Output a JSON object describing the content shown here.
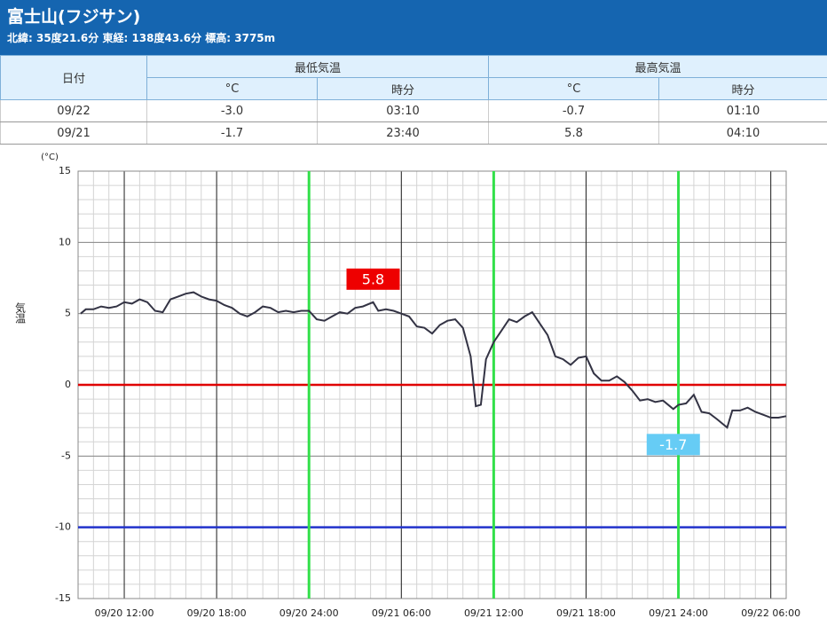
{
  "header": {
    "title": "富士山(フジサン)",
    "subtitle": "北緯: 35度21.6分 東経: 138度43.6分 標高: 3775m"
  },
  "table": {
    "headers": [
      "日付",
      "最低気温",
      "最高気温"
    ],
    "subheaders": [
      "°C",
      "時分",
      "°C",
      "時分"
    ],
    "rows": [
      [
        "09/22",
        "-3.0",
        "03:10",
        "-0.7",
        "01:10"
      ],
      [
        "09/21",
        "-1.7",
        "23:40",
        "5.8",
        "04:10"
      ]
    ]
  },
  "chart_data": {
    "type": "line",
    "y_unit": "(°C)",
    "y_label": "気温",
    "color": "#333344",
    "xlim": [
      "09/20 09:00",
      "09/22 07:00"
    ],
    "xticks": [
      "09/20 12:00",
      "09/20 18:00",
      "09/20 24:00",
      "09/21 06:00",
      "09/21 12:00",
      "09/21 18:00",
      "09/21 24:00",
      "09/22 06:00"
    ],
    "ylim": [
      -15,
      15
    ],
    "yticks": [
      -15,
      -10,
      -5,
      0,
      5,
      10,
      15
    ],
    "grid": true,
    "hlines": [
      {
        "value": 0,
        "color": "#e00000"
      },
      {
        "value": -10,
        "color": "#2233cc"
      }
    ],
    "vlines": {
      "color": "#33e04a",
      "x": [
        "09/20 24:00",
        "09/21 12:00",
        "09/21 24:00"
      ]
    },
    "max_label": {
      "x": "09/21 04:10",
      "value": 5.8,
      "color": "#ee0000"
    },
    "min_label": {
      "x": "09/21 23:40",
      "value": -1.7,
      "color": "#66ccf5"
    },
    "x": [
      "09/20 09:10",
      "09/20 09:30",
      "09/20 10:00",
      "09/20 10:30",
      "09/20 11:00",
      "09/20 11:30",
      "09/20 12:00",
      "09/20 12:30",
      "09/20 13:00",
      "09/20 13:30",
      "09/20 14:00",
      "09/20 14:30",
      "09/20 15:00",
      "09/20 15:30",
      "09/20 16:00",
      "09/20 16:30",
      "09/20 17:00",
      "09/20 17:30",
      "09/20 18:00",
      "09/20 18:30",
      "09/20 19:00",
      "09/20 19:30",
      "09/20 20:00",
      "09/20 20:30",
      "09/20 21:00",
      "09/20 21:30",
      "09/20 22:00",
      "09/20 22:30",
      "09/20 23:00",
      "09/20 23:30",
      "09/21 00:00",
      "09/21 00:30",
      "09/21 01:00",
      "09/21 01:30",
      "09/21 02:00",
      "09/21 02:30",
      "09/21 03:00",
      "09/21 03:30",
      "09/21 04:10",
      "09/21 04:30",
      "09/21 05:00",
      "09/21 05:30",
      "09/21 06:00",
      "09/21 06:30",
      "09/21 07:00",
      "09/21 07:30",
      "09/21 08:00",
      "09/21 08:30",
      "09/21 09:00",
      "09/21 09:30",
      "09/21 10:00",
      "09/21 10:30",
      "09/21 10:50",
      "09/21 11:10",
      "09/21 11:30",
      "09/21 12:00",
      "09/21 12:30",
      "09/21 13:00",
      "09/21 13:30",
      "09/21 14:00",
      "09/21 14:30",
      "09/21 15:00",
      "09/21 15:30",
      "09/21 16:00",
      "09/21 16:30",
      "09/21 17:00",
      "09/21 17:30",
      "09/21 18:00",
      "09/21 18:30",
      "09/21 19:00",
      "09/21 19:30",
      "09/21 20:00",
      "09/21 20:30",
      "09/21 21:00",
      "09/21 21:30",
      "09/21 22:00",
      "09/21 22:30",
      "09/21 23:00",
      "09/21 23:40",
      "09/22 00:00",
      "09/22 00:30",
      "09/22 01:00",
      "09/22 01:30",
      "09/22 02:00",
      "09/22 02:30",
      "09/22 03:10",
      "09/22 03:30",
      "09/22 04:00",
      "09/22 04:30",
      "09/22 05:00",
      "09/22 05:30",
      "09/22 06:00",
      "09/22 06:30",
      "09/22 07:00"
    ],
    "values": [
      5.0,
      5.3,
      5.3,
      5.5,
      5.4,
      5.5,
      5.8,
      5.7,
      6.0,
      5.8,
      5.2,
      5.1,
      6.0,
      6.2,
      6.4,
      6.5,
      6.2,
      6.0,
      5.9,
      5.6,
      5.4,
      5.0,
      4.8,
      5.1,
      5.5,
      5.4,
      5.1,
      5.2,
      5.1,
      5.2,
      5.2,
      4.6,
      4.5,
      4.8,
      5.1,
      5.0,
      5.4,
      5.5,
      5.8,
      5.2,
      5.3,
      5.2,
      5.0,
      4.8,
      4.1,
      4.0,
      3.6,
      4.2,
      4.5,
      4.6,
      4.0,
      2.0,
      -1.5,
      -1.4,
      1.8,
      3.0,
      3.8,
      4.6,
      4.4,
      4.8,
      5.1,
      4.3,
      3.5,
      2.0,
      1.8,
      1.4,
      1.9,
      2.0,
      0.8,
      0.3,
      0.3,
      0.6,
      0.2,
      -0.4,
      -1.1,
      -1.0,
      -1.2,
      -1.1,
      -1.7,
      -1.4,
      -1.3,
      -0.7,
      -1.9,
      -2.0,
      -2.4,
      -3.0,
      -1.8,
      -1.8,
      -1.6,
      -1.9,
      -2.1,
      -2.3,
      -2.3,
      -2.2
    ]
  }
}
